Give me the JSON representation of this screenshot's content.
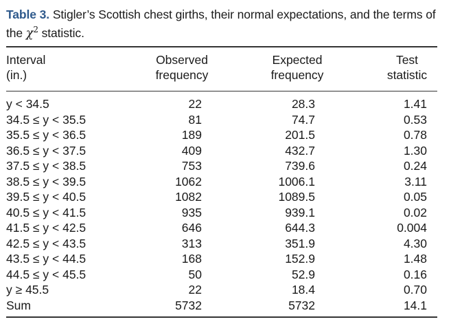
{
  "caption": {
    "label": "Table 3.",
    "text": "Stigler’s Scottish chest girths, their normal expectations, and the terms of the",
    "chi_symbol": "χ",
    "chi_exponent": "2",
    "suffix": "statistic."
  },
  "headers": {
    "interval": [
      "Interval",
      "(in.)"
    ],
    "observed": [
      "Observed",
      "frequency"
    ],
    "expected": [
      "Expected",
      "frequency"
    ],
    "test": [
      "Test",
      "statistic"
    ]
  },
  "rows": [
    {
      "interval": "y < 34.5",
      "observed": "22",
      "expected": "28.3",
      "statistic": "1.41"
    },
    {
      "interval": "34.5 ≤ y < 35.5",
      "observed": "81",
      "expected": "74.7",
      "statistic": "0.53"
    },
    {
      "interval": "35.5 ≤ y < 36.5",
      "observed": "189",
      "expected": "201.5",
      "statistic": "0.78"
    },
    {
      "interval": "36.5 ≤ y < 37.5",
      "observed": "409",
      "expected": "432.7",
      "statistic": "1.30"
    },
    {
      "interval": "37.5 ≤ y < 38.5",
      "observed": "753",
      "expected": "739.6",
      "statistic": "0.24"
    },
    {
      "interval": "38.5 ≤ y < 39.5",
      "observed": "1062",
      "expected": "1006.1",
      "statistic": "3.11"
    },
    {
      "interval": "39.5 ≤ y < 40.5",
      "observed": "1082",
      "expected": "1089.5",
      "statistic": "0.05"
    },
    {
      "interval": "40.5 ≤ y < 41.5",
      "observed": "935",
      "expected": "939.1",
      "statistic": "0.02"
    },
    {
      "interval": "41.5 ≤ y < 42.5",
      "observed": "646",
      "expected": "644.3",
      "statistic": "0.004"
    },
    {
      "interval": "42.5 ≤ y < 43.5",
      "observed": "313",
      "expected": "351.9",
      "statistic": "4.30"
    },
    {
      "interval": "43.5 ≤ y < 44.5",
      "observed": "168",
      "expected": "152.9",
      "statistic": "1.48"
    },
    {
      "interval": "44.5 ≤ y < 45.5",
      "observed": "50",
      "expected": "52.9",
      "statistic": "0.16"
    },
    {
      "interval": "y ≥ 45.5",
      "observed": "22",
      "expected": "18.4",
      "statistic": "0.70"
    },
    {
      "interval": "Sum",
      "observed": "5732",
      "expected": "5732",
      "statistic": "14.1"
    }
  ]
}
